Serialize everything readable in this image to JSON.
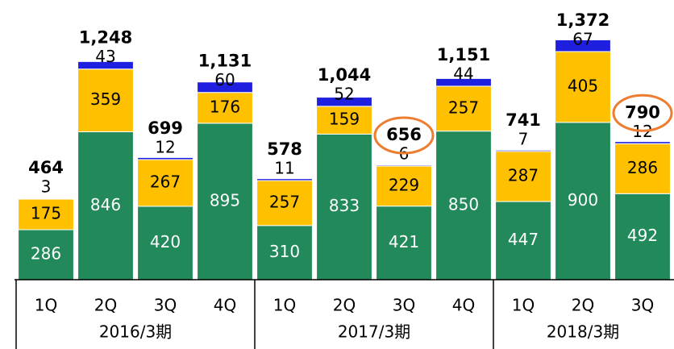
{
  "chart_data": {
    "type": "stacked_bar",
    "categories": [
      "1Q",
      "2Q",
      "3Q",
      "4Q",
      "1Q",
      "2Q",
      "3Q",
      "4Q",
      "1Q",
      "2Q",
      "3Q"
    ],
    "group_labels": [
      "2016/3期",
      "2017/3期",
      "2018/3期"
    ],
    "group_sizes": [
      4,
      4,
      3
    ],
    "series": [
      {
        "color": "#21895a",
        "values": [
          286,
          846,
          420,
          895,
          310,
          833,
          421,
          850,
          447,
          900,
          492
        ]
      },
      {
        "color": "#ffc000",
        "values": [
          175,
          359,
          267,
          176,
          257,
          159,
          229,
          257,
          287,
          405,
          286
        ]
      },
      {
        "color": "#1f1fe0",
        "values": [
          3,
          43,
          12,
          60,
          11,
          52,
          6,
          44,
          7,
          67,
          12
        ]
      }
    ],
    "totals": [
      464,
      1248,
      699,
      1131,
      578,
      1044,
      656,
      1151,
      741,
      1372,
      790
    ],
    "value_labels": [
      "464",
      "1,248",
      "699",
      "1,131",
      "578",
      "1,044",
      "656",
      "1,151",
      "741",
      "1,372",
      "790"
    ],
    "highlighted": [
      6,
      10
    ],
    "highlight_color": "#ed7d31",
    "ylim": [
      0,
      1600
    ]
  }
}
